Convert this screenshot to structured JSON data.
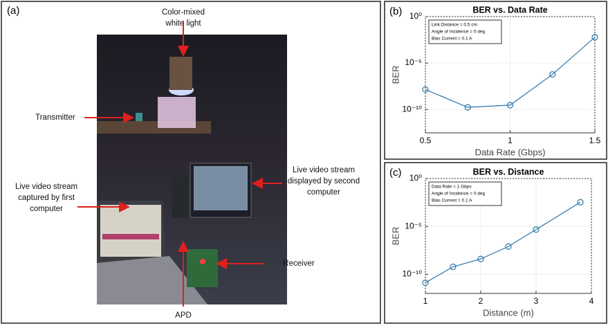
{
  "photo_panel": {
    "label": "(a)",
    "annotations": [
      {
        "lines": [
          "Color-mixed",
          "white light"
        ]
      },
      {
        "lines": [
          "Transmitter"
        ]
      },
      {
        "lines": [
          "Live video stream",
          "displayed by second",
          "computer"
        ]
      },
      {
        "lines": [
          "Live video stream",
          "captured by first",
          "computer"
        ]
      },
      {
        "lines": [
          "Receiver"
        ]
      },
      {
        "lines": [
          "APD"
        ]
      }
    ]
  },
  "chart_data": [
    {
      "type": "line",
      "panel_label": "(b)",
      "title": "BER vs. Data Rate",
      "xlabel": "Data Rate (Gbps)",
      "ylabel": "BER",
      "annotations": [
        "Link Distance = 0.5 cm",
        "Angle of Incidence = 0 deg",
        "Bias Current = 0.1 A"
      ],
      "x": [
        0.5,
        0.75,
        1,
        1.25,
        1.5
      ],
      "series": [
        {
          "color": "#3a7fb0",
          "values": [
            1.4e-08,
            1.7e-10,
            2.9e-10,
            6e-07,
            0.006
          ]
        }
      ],
      "xlim": [
        0.5,
        1.5
      ],
      "xticks": [
        0.5,
        1,
        1.5
      ],
      "yscale": "log",
      "ylim": [
        3e-13,
        1
      ],
      "yticks": [
        {
          "value": 1e-10,
          "label": "10⁻¹⁰"
        },
        {
          "value": 1e-05,
          "label": "10⁻⁵"
        },
        {
          "value": 1,
          "label": "10⁰"
        }
      ],
      "grid": true
    },
    {
      "type": "line",
      "panel_label": "(c)",
      "title": "BER vs. Distance",
      "xlabel": "Distance (m)",
      "ylabel": "BER",
      "annotations": [
        "Data Rate = 1 Gbps",
        "Angle of Incidence = 0 deg",
        "Bias Current = 0.1 A"
      ],
      "x": [
        1,
        1.5,
        2,
        2.5,
        3,
        3.8
      ],
      "series": [
        {
          "color": "#3a7fb0",
          "values": [
            1.3e-11,
            6e-10,
            4e-09,
            8e-08,
            4.7e-06,
            0.0033
          ]
        }
      ],
      "xlim": [
        1,
        4
      ],
      "xticks": [
        1,
        2,
        3,
        4
      ],
      "yscale": "log",
      "ylim": [
        1e-12,
        1
      ],
      "yticks": [
        {
          "value": 1e-10,
          "label": "10⁻¹⁰"
        },
        {
          "value": 1e-05,
          "label": "10⁻⁵"
        },
        {
          "value": 1,
          "label": "10⁰"
        }
      ],
      "grid": true
    }
  ]
}
